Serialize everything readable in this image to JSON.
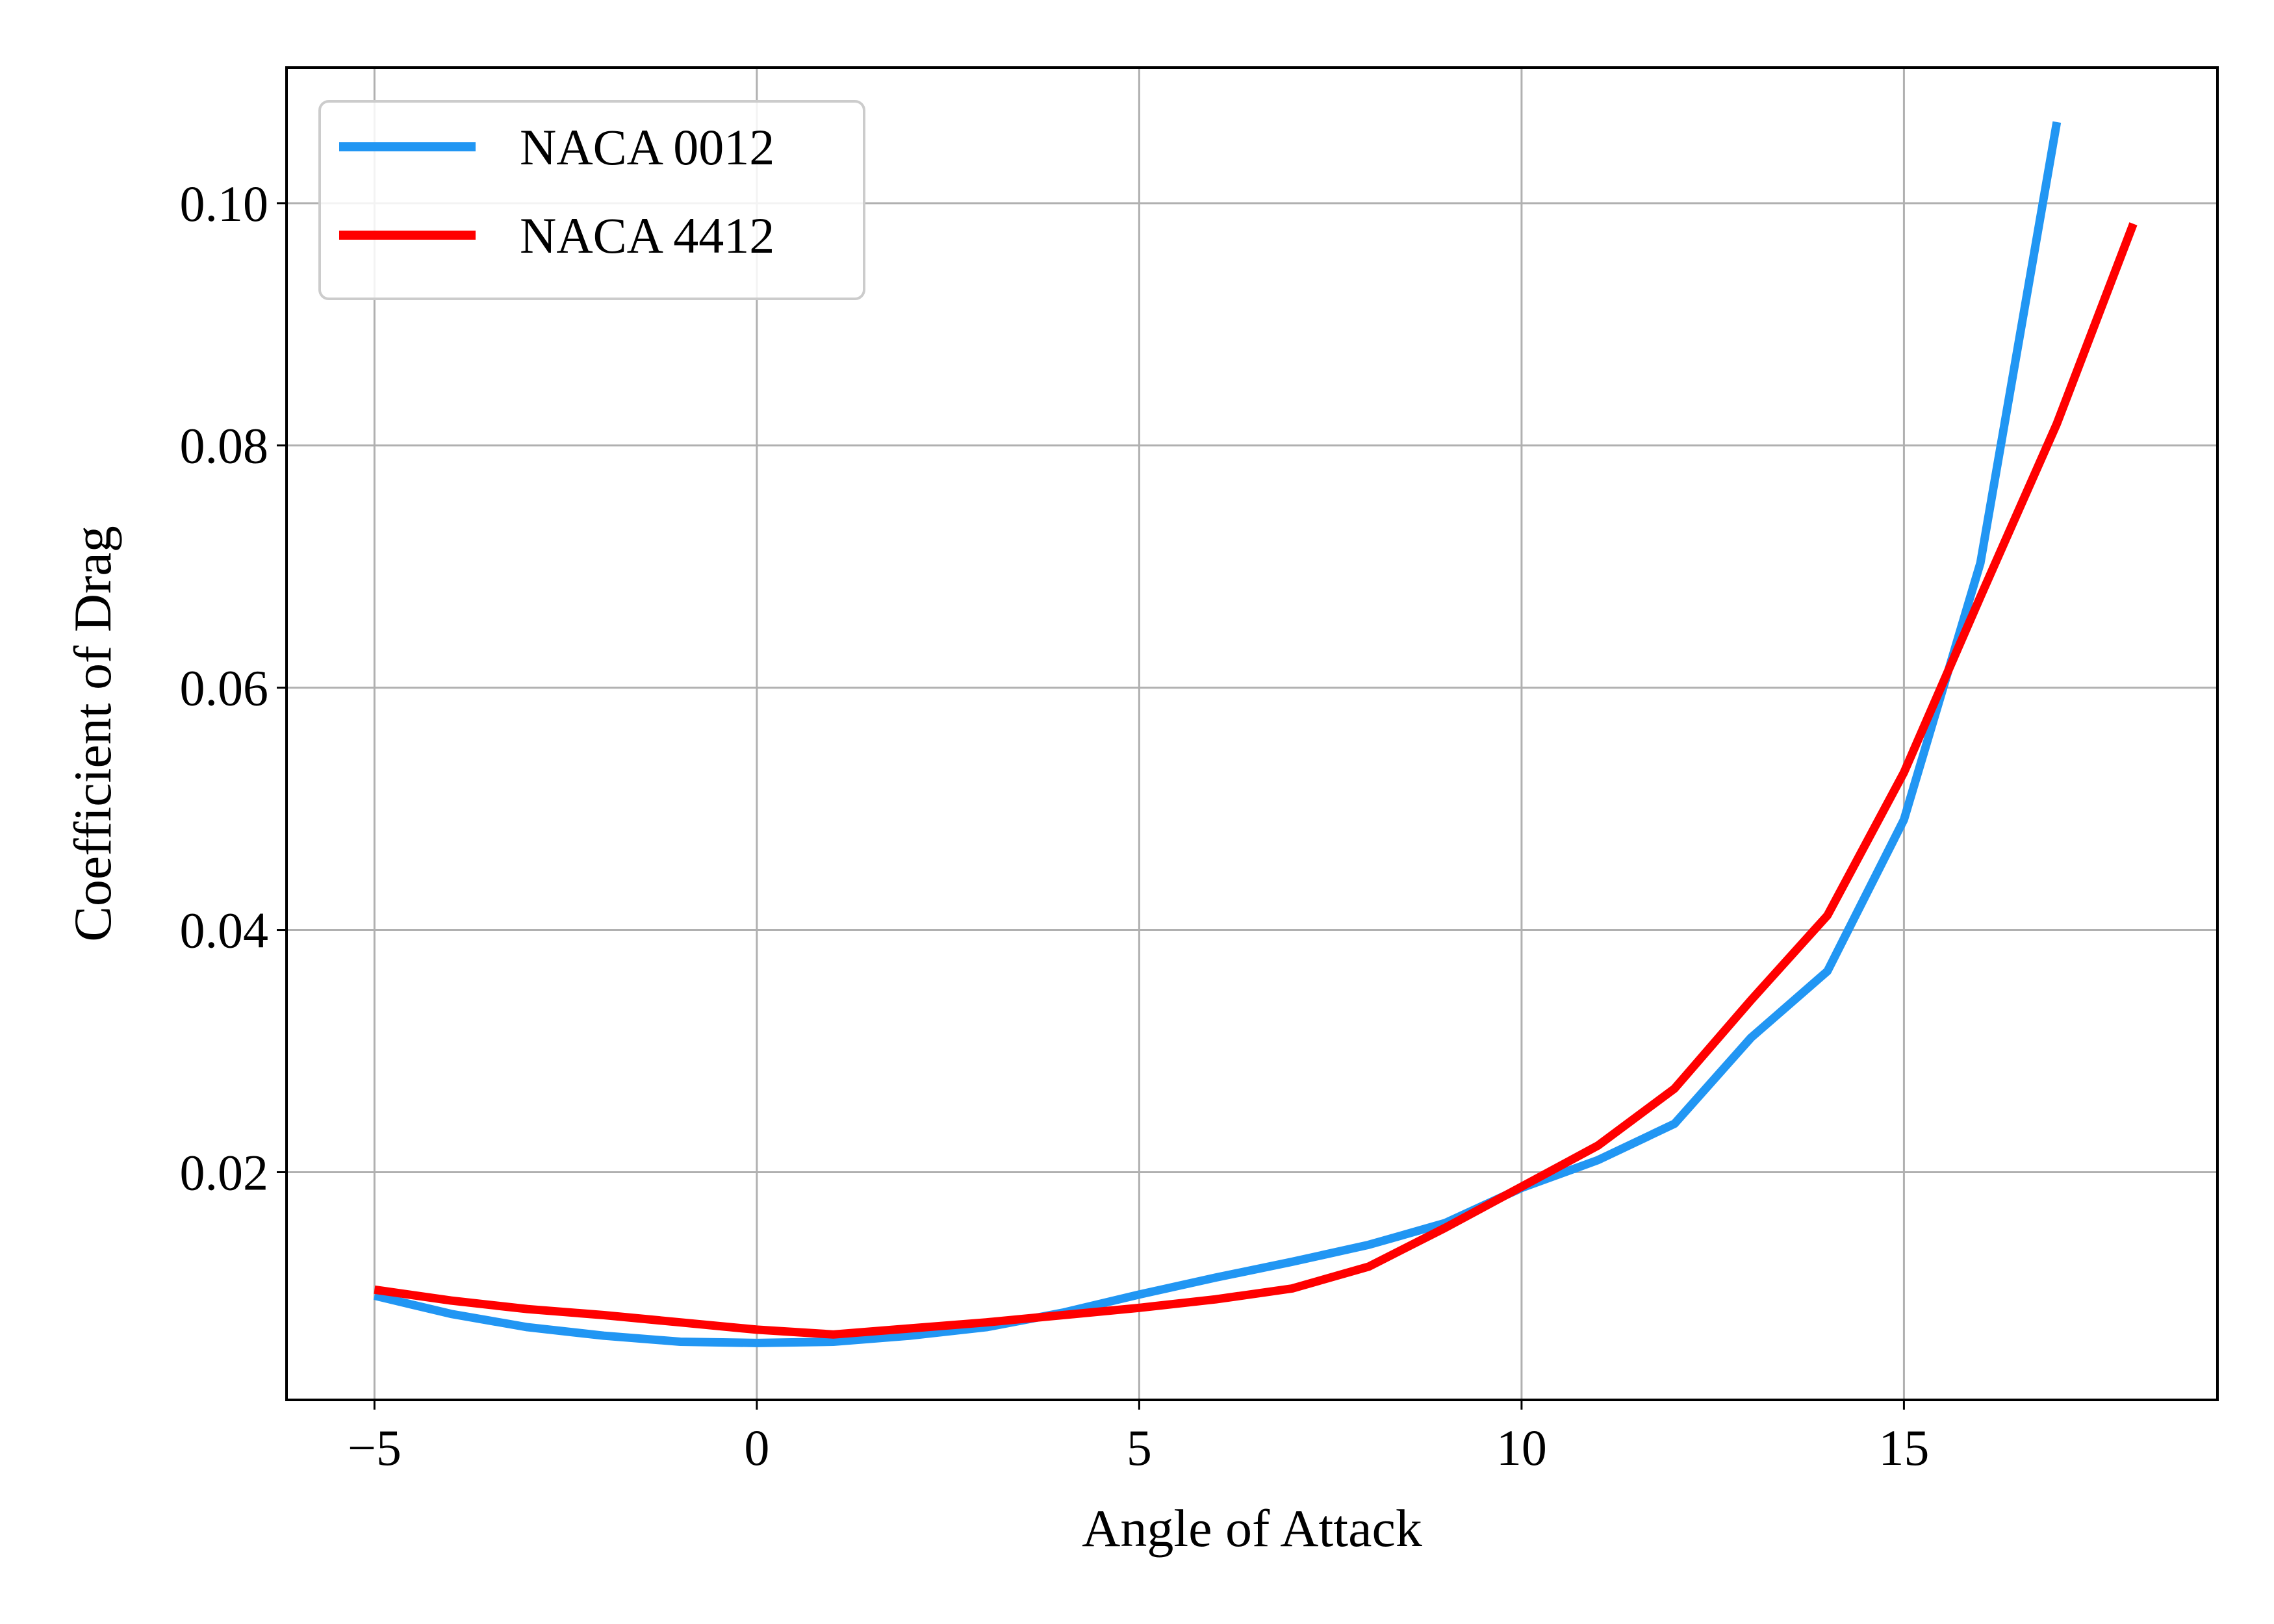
{
  "chart_data": {
    "type": "line",
    "xlabel": "Angle of Attack",
    "ylabel": "Coefficient of Drag",
    "xlim": [
      -6.15,
      19.1
    ],
    "ylim": [
      0.0012,
      0.1112
    ],
    "xticks": [
      -5,
      0,
      5,
      10,
      15
    ],
    "xtick_labels": [
      "−5",
      "0",
      "5",
      "10",
      "15"
    ],
    "yticks": [
      0.02,
      0.04,
      0.06,
      0.08,
      0.1
    ],
    "ytick_labels": [
      "0.02",
      "0.04",
      "0.06",
      "0.08",
      "0.10"
    ],
    "grid": true,
    "legend_position": "top-left",
    "series": [
      {
        "name": "NACA 0012",
        "color": "#2196f3",
        "x": [
          -5,
          -4,
          -3,
          -2,
          -1,
          0,
          1,
          2,
          3,
          4,
          5,
          6,
          7,
          8,
          9,
          10,
          11,
          12,
          13,
          14,
          15,
          16,
          17
        ],
        "y": [
          0.0098,
          0.0083,
          0.0072,
          0.0065,
          0.006,
          0.0059,
          0.006,
          0.0065,
          0.0072,
          0.0084,
          0.0099,
          0.0113,
          0.0126,
          0.014,
          0.0158,
          0.0187,
          0.021,
          0.024,
          0.0311,
          0.0366,
          0.0491,
          0.0703,
          0.1067
        ]
      },
      {
        "name": "NACA 4412",
        "color": "#ff0000",
        "x": [
          -5,
          -4,
          -3,
          -2,
          -1,
          0,
          1,
          2,
          3,
          4,
          5,
          6,
          7,
          8,
          9,
          10,
          11,
          12,
          13,
          14,
          15,
          16,
          17,
          18
        ],
        "y": [
          0.0103,
          0.0094,
          0.0087,
          0.0082,
          0.0076,
          0.007,
          0.0066,
          0.0071,
          0.0076,
          0.0082,
          0.0088,
          0.0095,
          0.0104,
          0.0122,
          0.0154,
          0.0188,
          0.0222,
          0.0269,
          0.0342,
          0.0412,
          0.053,
          0.0675,
          0.0818,
          0.0983
        ]
      }
    ]
  }
}
